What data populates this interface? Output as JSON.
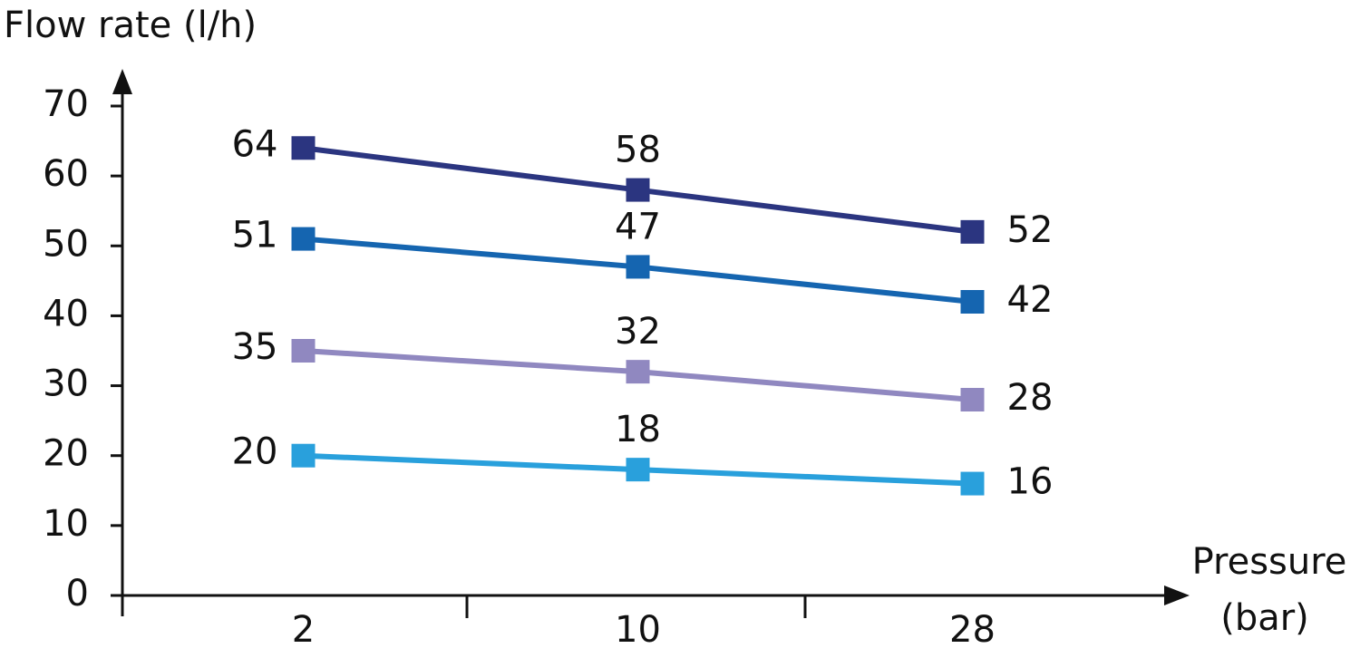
{
  "chart_data": {
    "type": "line",
    "ylabel": "Flow rate (l/h)",
    "xlabel": [
      "Pressure",
      "(bar)"
    ],
    "categories": [
      "2",
      "10",
      "28"
    ],
    "series": [
      {
        "color": "#2b3580",
        "values": [
          64,
          58,
          52
        ]
      },
      {
        "color": "#1565b0",
        "values": [
          51,
          47,
          42
        ]
      },
      {
        "color": "#9088c0",
        "values": [
          35,
          32,
          28
        ]
      },
      {
        "color": "#29a0dc",
        "values": [
          20,
          18,
          16
        ]
      }
    ],
    "ylim": [
      0,
      70
    ],
    "yticks": [
      0,
      10,
      20,
      30,
      40,
      50,
      60,
      70
    ]
  }
}
